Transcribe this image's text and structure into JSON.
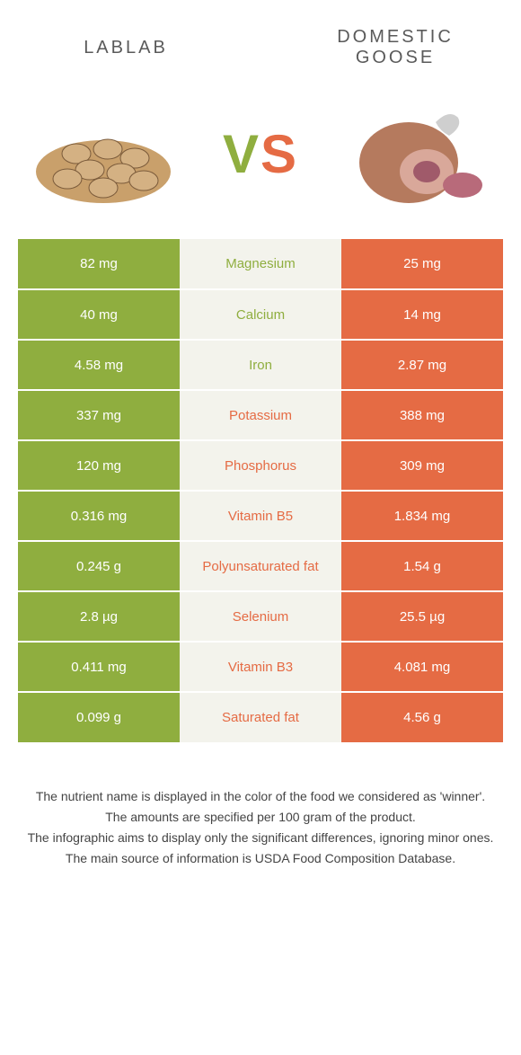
{
  "header": {
    "left_label": "LABLAB",
    "right_label": "DOMESTIC GOOSE"
  },
  "vs": {
    "text_v": "V",
    "text_s": "S",
    "color_left": "#8fae3f",
    "color_right": "#e56b44"
  },
  "colors": {
    "left_bg": "#8fae3f",
    "right_bg": "#e56b44",
    "mid_bg": "#f3f3ec",
    "left_text": "#8fae3f",
    "right_text": "#e56b44"
  },
  "rows": [
    {
      "left": "82 mg",
      "label": "Magnesium",
      "right": "25 mg",
      "winner": "left"
    },
    {
      "left": "40 mg",
      "label": "Calcium",
      "right": "14 mg",
      "winner": "left"
    },
    {
      "left": "4.58 mg",
      "label": "Iron",
      "right": "2.87 mg",
      "winner": "left"
    },
    {
      "left": "337 mg",
      "label": "Potassium",
      "right": "388 mg",
      "winner": "right"
    },
    {
      "left": "120 mg",
      "label": "Phosphorus",
      "right": "309 mg",
      "winner": "right"
    },
    {
      "left": "0.316 mg",
      "label": "Vitamin B5",
      "right": "1.834 mg",
      "winner": "right"
    },
    {
      "left": "0.245 g",
      "label": "Polyunsaturated fat",
      "right": "1.54 g",
      "winner": "right"
    },
    {
      "left": "2.8 µg",
      "label": "Selenium",
      "right": "25.5 µg",
      "winner": "right"
    },
    {
      "left": "0.411 mg",
      "label": "Vitamin B3",
      "right": "4.081 mg",
      "winner": "right"
    },
    {
      "left": "0.099 g",
      "label": "Saturated fat",
      "right": "4.56 g",
      "winner": "right"
    }
  ],
  "footer": {
    "line1": "The nutrient name is displayed in the color of the food we considered as 'winner'.",
    "line2": "The amounts are specified per 100 gram of the product.",
    "line3": "The infographic aims to display only the significant differences, ignoring minor ones.",
    "line4": "The main source of information is USDA Food Composition Database."
  }
}
